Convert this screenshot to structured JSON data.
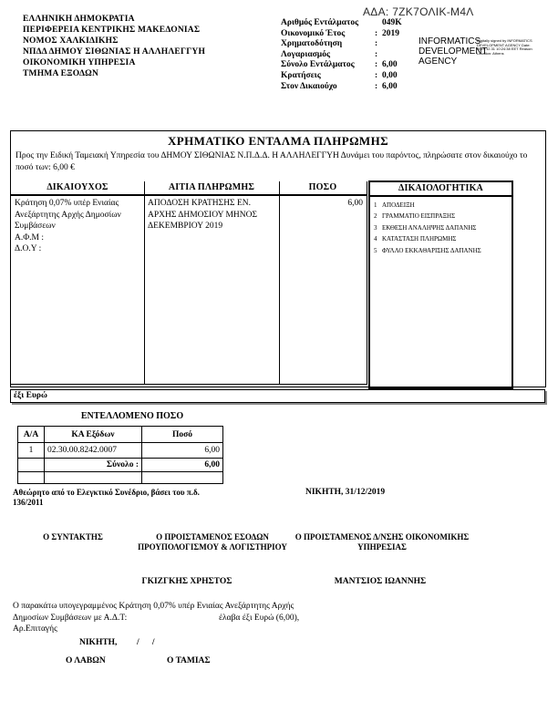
{
  "ada": "ΑΔΑ: 7ZK7ΟΛΙΚ-Μ4Λ",
  "issuer": {
    "lines": [
      "ΕΛΛΗΝΙΚΗ ΔΗΜΟΚΡΑΤΙΑ",
      "ΠΕΡΙΦΕΡΕΙΑ  ΚΕΝΤΡΙΚΗΣ ΜΑΚΕΔΟΝΙΑΣ",
      "ΝΟΜΟΣ  ΧΑΛΚΙΔΙΚΗΣ",
      "ΝΠΔΔ ΔΗΜΟΥ ΣΙΘΩΝΙΑΣ Η ΑΛΛΗΛΕΓΓΥΗ",
      "ΟΙΚΟΝΟΜΙΚΗ ΥΠΗΡΕΣΙΑ",
      "ΤΜΗΜΑ ΕΞΟΔΩΝ"
    ]
  },
  "meta": {
    "rows": [
      {
        "label": "Αριθμός Εντάλματος",
        "sep": "",
        "value": "049Κ"
      },
      {
        "label": "Οικονομικό Έτος",
        "sep": ":",
        "value": "2019"
      },
      {
        "label": "Χρηματοδότηση",
        "sep": ":",
        "value": ""
      },
      {
        "label": "Λογαριασμός",
        "sep": ":",
        "value": ""
      },
      {
        "label": "Σύνολο Εντάλματος",
        "sep": ":",
        "value": "6,00"
      },
      {
        "label": "Κρατήσεις",
        "sep": ":",
        "value": "0,00"
      },
      {
        "label": "Στον Δικαιούχο",
        "sep": ":",
        "value": "6,00"
      }
    ]
  },
  "signature_stamp": {
    "agency": "INFORMATICS DEVELOPMENT AGENCY",
    "details": "Digitally signed by INFORMATICS DEVELOPMENT AGENCY Date: 2019.12.31 10:24:38 EET Reason: Location: Athens"
  },
  "order": {
    "title": "ΧΡΗΜΑΤΙΚΟ ΕΝΤΑΛΜΑ ΠΛΗΡΩΜΗΣ",
    "intro": "Προς την Ειδική Ταμειακή Υπηρεσία του  ΔΗΜΟΥ ΣΙΘΩΝΙΑΣ Ν.Π.Δ.Δ. Η ΑΛΛΗΛΕΓΓΥΗ  Δυνάμει του παρόντος,  πληρώσατε στον δικαιούχο  το  ποσό των: 6,00 €",
    "columns": {
      "beneficiary": "ΔΙΚΑΙΟΥΧΟΣ",
      "reason": "ΑΙΤΙΑ ΠΛΗΡΩΜΗΣ",
      "amount": "ΠΟΣΟ",
      "documents": "ΔΙΚΑΙΟΛΟΓΗΤΙΚΑ"
    },
    "beneficiary": {
      "name": "Κράτηση 0,07% υπέρ Ενιαίας Ανεξάρτητης Αρχής Δημοσίων Συμβάσεων",
      "afm": "Α.Φ.Μ :",
      "doy": "Δ.Ο.Υ :"
    },
    "reason": "ΑΠΟΔΟΣΗ ΚΡΑΤΗΣΗΣ ΕΝ. ΑΡΧΗΣ ΔΗΜΟΣΙΟΥ ΜΗΝΟΣ ΔΕΚΕΜΒΡΙΟΥ 2019",
    "amount": "6,00",
    "documents": [
      {
        "no": "1",
        "label": "ΑΠΟΔΕΙΞΗ"
      },
      {
        "no": "2",
        "label": "ΓΡΑΜΜΑΤΙΟ ΕΙΣΠΡΑΞΗΣ"
      },
      {
        "no": "3",
        "label": "ΕΚΘΕΣΗ ΑΝΑΛΗΨΗΣ ΔΑΠΑΝΗΣ"
      },
      {
        "no": "4",
        "label": "ΚΑΤΑΣΤΑΣΗ ΠΛΗΡΩΜΗΣ"
      },
      {
        "no": "5",
        "label": "ΦΥΛΛΟ ΕΚΚΑΘΑΡΙΣΗΣ ΔΑΠΑΝΗΣ"
      }
    ],
    "amount_words": "έξι Ευρώ"
  },
  "charged_amount": {
    "title": "ΕΝΤΕΛΛΟΜΕΝΟ ΠΟΣΟ",
    "headers": {
      "aa": "Α/Α",
      "code": "ΚΑ Εξόδων",
      "amount": "Ποσό"
    },
    "rows": [
      {
        "aa": "1",
        "code": "02.30.00.8242.0007",
        "amount": "6,00"
      }
    ],
    "total_label": "Σύνολο :",
    "total": "6,00"
  },
  "notes": {
    "audit_line1": "Αθεώρητο από το Ελεγκτικό Συνέδριο, βάσει του π.δ.",
    "audit_line2": "136/2011",
    "place_date": "ΝΙΚΗΤΗ,  31/12/2019"
  },
  "signatories": {
    "left_role": "Ο ΣΥΝΤΑΚΤΗΣ",
    "middle_role_line1": "Ο ΠΡΟΙΣΤΑΜΕΝΟΣ ΕΣΟΔΩΝ",
    "middle_role_line2": "ΠΡΟΥΠΟΛΟΓΙΣΜΟΥ & ΛΟΓΙΣΤΗΡΙΟΥ",
    "right_role_line1": "Ο ΠΡΟΙΣΤΑΜΕΝΟΣ Δ/ΝΣΗΣ ΟΙΚΟΝΟΜΙΚΗΣ",
    "right_role_line2": "ΥΠΗΡΕΣΙΑΣ",
    "middle_name": "ΓΚΙΖΓΚΗΣ ΧΡΗΣΤΟΣ",
    "right_name": "ΜΑΝΤΣΙΟΣ ΙΩΑΝΝΗΣ"
  },
  "receipt": {
    "line1": "Ο παρακάτω υπογεγραμμένος Κράτηση 0,07% υπέρ Ενιαίας Ανεξάρτητης Αρχής",
    "line2_left": "Δημοσίων Συμβάσεων  με Α.Δ.Τ:",
    "line2_right": "έλαβα  έξι Ευρώ (6,00),",
    "line3": "Αρ.Επιταγής",
    "place": "ΝΙΚΗΤΗ,",
    "slashes": "/      /",
    "receiver": "Ο ΛΑΒΩΝ",
    "cashier": "Ο ΤΑΜΙΑΣ"
  }
}
